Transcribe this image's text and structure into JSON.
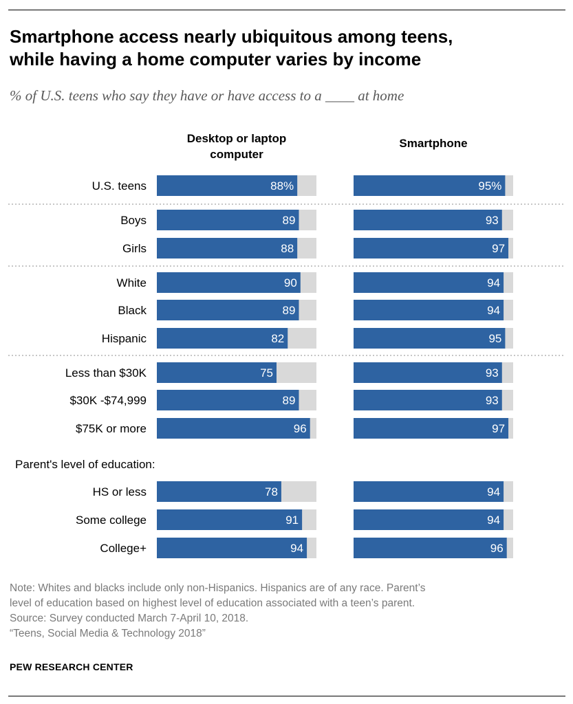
{
  "header": {
    "title_line1": "Smartphone access nearly ubiquitous among teens,",
    "title_line2": "while having a home computer varies by income",
    "subtitle": "% of U.S. teens who say they have or have access to a ____ at home"
  },
  "columns": {
    "desktop": [
      "Desktop or laptop",
      "computer"
    ],
    "smartphone": "Smartphone"
  },
  "colors": {
    "bar": "#2e63a2",
    "track": "#d9d9d9",
    "separator": "#8c8c8c"
  },
  "chart_data": {
    "type": "bar",
    "orientation": "horizontal",
    "title": "Smartphone access nearly ubiquitous among teens, while having a home computer varies by income",
    "subtitle": "% of U.S. teens who say they have or have access to a ____ at home",
    "xlim": [
      0,
      100
    ],
    "section_label": "Parent's level of education:",
    "groups": [
      {
        "rows": [
          {
            "label": "U.S. teens",
            "desktop": 88,
            "desktop_text": "88%",
            "smartphone": 95,
            "smartphone_text": "95%"
          }
        ]
      },
      {
        "rows": [
          {
            "label": "Boys",
            "desktop": 89,
            "desktop_text": "89",
            "smartphone": 93,
            "smartphone_text": "93"
          },
          {
            "label": "Girls",
            "desktop": 88,
            "desktop_text": "88",
            "smartphone": 97,
            "smartphone_text": "97"
          }
        ]
      },
      {
        "rows": [
          {
            "label": "White",
            "desktop": 90,
            "desktop_text": "90",
            "smartphone": 94,
            "smartphone_text": "94"
          },
          {
            "label": "Black",
            "desktop": 89,
            "desktop_text": "89",
            "smartphone": 94,
            "smartphone_text": "94"
          },
          {
            "label": "Hispanic",
            "desktop": 82,
            "desktop_text": "82",
            "smartphone": 95,
            "smartphone_text": "95"
          }
        ]
      },
      {
        "rows": [
          {
            "label": "Less than $30K",
            "desktop": 75,
            "desktop_text": "75",
            "smartphone": 93,
            "smartphone_text": "93"
          },
          {
            "label": "$30K -$74,999",
            "desktop": 89,
            "desktop_text": "89",
            "smartphone": 93,
            "smartphone_text": "93"
          },
          {
            "label": "$75K or more",
            "desktop": 96,
            "desktop_text": "96",
            "smartphone": 97,
            "smartphone_text": "97"
          }
        ]
      },
      {
        "rows": [
          {
            "label": "HS or less",
            "desktop": 78,
            "desktop_text": "78",
            "smartphone": 94,
            "smartphone_text": "94"
          },
          {
            "label": "Some college",
            "desktop": 91,
            "desktop_text": "91",
            "smartphone": 94,
            "smartphone_text": "94"
          },
          {
            "label": "College+",
            "desktop": 94,
            "desktop_text": "94",
            "smartphone": 96,
            "smartphone_text": "96"
          }
        ]
      }
    ]
  },
  "notes": {
    "line1": "Note: Whites and blacks include only non-Hispanics. Hispanics are of any race. Parent’s",
    "line2": "level of education based on highest level of education associated with a teen’s parent.",
    "line3": "Source: Survey conducted March 7-April 10, 2018.",
    "line4": "“Teens, Social Media & Technology 2018”"
  },
  "brand": "PEW RESEARCH CENTER"
}
